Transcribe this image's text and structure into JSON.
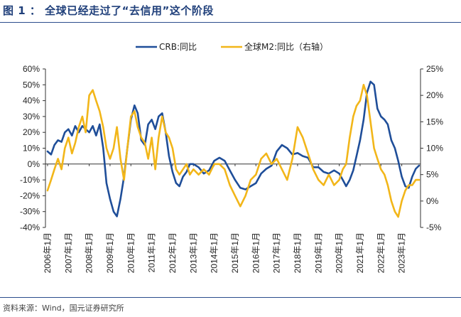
{
  "header": {
    "title": "图 1 ： 全球已经走过了“去信用”这个阶段"
  },
  "footer": {
    "source": "资料来源：Wind，国元证券研究所"
  },
  "chart_data": {
    "type": "line",
    "title": "全球已经走过了“去信用”这个阶段",
    "x_categories": [
      "2006年1月",
      "2007年1月",
      "2008年1月",
      "2009年1月",
      "2010年1月",
      "2011年1月",
      "2012年1月",
      "2013年1月",
      "2014年1月",
      "2015年1月",
      "2016年1月",
      "2017年1月",
      "2018年1月",
      "2019年1月",
      "2020年1月",
      "2021年1月",
      "2022年1月",
      "2023年1月"
    ],
    "left_axis": {
      "ylim": [
        -40,
        60
      ],
      "ticks": [
        -40,
        -30,
        -20,
        -10,
        0,
        10,
        20,
        30,
        40,
        50,
        60
      ],
      "tick_labels": [
        "-40%",
        "-30%",
        "-20%",
        "-10%",
        "0%",
        "10%",
        "20%",
        "30%",
        "40%",
        "50%",
        "60%"
      ]
    },
    "right_axis": {
      "ylim": [
        -5,
        25
      ],
      "ticks": [
        -5,
        0,
        5,
        10,
        15,
        20,
        25
      ],
      "tick_labels": [
        "-5%",
        "0%",
        "5%",
        "10%",
        "15%",
        "20%",
        "25%"
      ]
    },
    "legend": {
      "placement": "top-center"
    },
    "series": [
      {
        "name": "CRB:同比",
        "axis": "left",
        "color": "#1f4e99",
        "x": [
          2006.0,
          2006.17,
          2006.33,
          2006.5,
          2006.67,
          2006.83,
          2007.0,
          2007.17,
          2007.33,
          2007.5,
          2007.67,
          2007.83,
          2008.0,
          2008.17,
          2008.33,
          2008.5,
          2008.67,
          2008.83,
          2009.0,
          2009.17,
          2009.33,
          2009.5,
          2009.67,
          2009.83,
          2010.0,
          2010.17,
          2010.33,
          2010.5,
          2010.67,
          2010.83,
          2011.0,
          2011.17,
          2011.33,
          2011.5,
          2011.67,
          2011.83,
          2012.0,
          2012.17,
          2012.33,
          2012.5,
          2012.67,
          2012.83,
          2013.0,
          2013.25,
          2013.5,
          2013.75,
          2014.0,
          2014.25,
          2014.5,
          2014.75,
          2015.0,
          2015.25,
          2015.5,
          2015.75,
          2016.0,
          2016.25,
          2016.5,
          2016.75,
          2017.0,
          2017.25,
          2017.5,
          2017.75,
          2018.0,
          2018.25,
          2018.5,
          2018.75,
          2019.0,
          2019.25,
          2019.5,
          2019.75,
          2020.0,
          2020.17,
          2020.33,
          2020.5,
          2020.67,
          2020.83,
          2021.0,
          2021.17,
          2021.33,
          2021.5,
          2021.67,
          2021.83,
          2022.0,
          2022.17,
          2022.33,
          2022.5,
          2022.67,
          2022.83,
          2023.0,
          2023.17,
          2023.33,
          2023.5,
          2023.67,
          2023.83
        ],
        "values": [
          8,
          6,
          12,
          15,
          14,
          20,
          22,
          18,
          24,
          20,
          24,
          22,
          20,
          24,
          18,
          25,
          10,
          -12,
          -22,
          -30,
          -33,
          -22,
          -8,
          10,
          28,
          37,
          32,
          15,
          12,
          25,
          28,
          22,
          30,
          32,
          20,
          5,
          -5,
          -12,
          -14,
          -8,
          -5,
          0,
          0,
          -2,
          -6,
          -4,
          2,
          4,
          2,
          -4,
          -10,
          -15,
          -16,
          -14,
          -12,
          -6,
          -3,
          -1,
          8,
          12,
          10,
          6,
          7,
          5,
          4,
          -2,
          -2,
          -5,
          -6,
          -4,
          -6,
          -10,
          -14,
          -10,
          -4,
          5,
          15,
          28,
          45,
          52,
          50,
          35,
          30,
          28,
          25,
          15,
          10,
          2,
          -8,
          -14,
          -15,
          -8,
          -3,
          -1
        ]
      },
      {
        "name": "全球M2:同比（右轴）",
        "axis": "right",
        "color": "#f2b619",
        "x": [
          2006.0,
          2006.17,
          2006.33,
          2006.5,
          2006.67,
          2006.83,
          2007.0,
          2007.17,
          2007.33,
          2007.5,
          2007.67,
          2007.83,
          2008.0,
          2008.17,
          2008.33,
          2008.5,
          2008.67,
          2008.83,
          2009.0,
          2009.17,
          2009.33,
          2009.5,
          2009.67,
          2009.83,
          2010.0,
          2010.17,
          2010.33,
          2010.5,
          2010.67,
          2010.83,
          2011.0,
          2011.17,
          2011.33,
          2011.5,
          2011.67,
          2011.83,
          2012.0,
          2012.17,
          2012.33,
          2012.5,
          2012.67,
          2012.83,
          2013.0,
          2013.25,
          2013.5,
          2013.75,
          2014.0,
          2014.25,
          2014.5,
          2014.75,
          2015.0,
          2015.25,
          2015.5,
          2015.75,
          2016.0,
          2016.25,
          2016.5,
          2016.75,
          2017.0,
          2017.25,
          2017.5,
          2017.75,
          2018.0,
          2018.25,
          2018.5,
          2018.75,
          2019.0,
          2019.25,
          2019.5,
          2019.75,
          2020.0,
          2020.17,
          2020.33,
          2020.5,
          2020.67,
          2020.83,
          2021.0,
          2021.17,
          2021.33,
          2021.5,
          2021.67,
          2021.83,
          2022.0,
          2022.17,
          2022.33,
          2022.5,
          2022.67,
          2022.83,
          2023.0,
          2023.17,
          2023.33,
          2023.5,
          2023.67,
          2023.83
        ],
        "values": [
          2,
          4,
          6,
          8,
          6,
          10,
          12,
          9,
          11,
          14,
          16,
          13,
          20,
          21,
          19,
          17,
          14,
          10,
          8,
          10,
          14,
          8,
          4,
          10,
          16,
          17,
          14,
          12,
          11,
          8,
          12,
          6,
          12,
          16,
          13,
          12,
          10,
          6,
          5,
          6,
          7,
          5,
          6,
          5,
          6,
          5,
          7,
          7,
          6,
          3,
          1,
          -1,
          1,
          4,
          5,
          8,
          9,
          7,
          8,
          6,
          4,
          8,
          14,
          12,
          9,
          6,
          4,
          3,
          5,
          3,
          4,
          6,
          7,
          12,
          16,
          18,
          19,
          22,
          20,
          15,
          10,
          8,
          6,
          5,
          3,
          0,
          -2,
          -3,
          0,
          2,
          3,
          3,
          4,
          4
        ]
      }
    ]
  }
}
